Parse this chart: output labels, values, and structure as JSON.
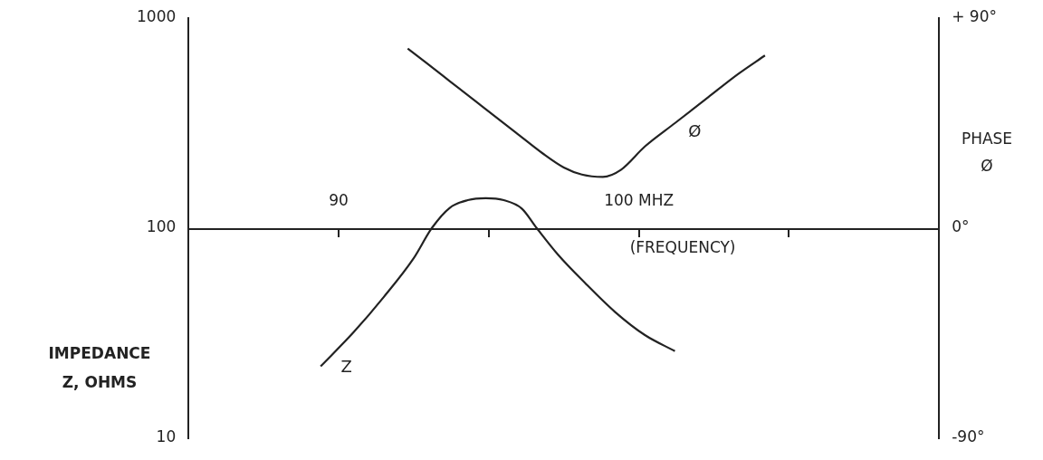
{
  "chart_data": {
    "type": "line",
    "xlabel": "(FREQUENCY)",
    "ylabel": "IMPEDANCE Z, OHMS",
    "y2label": "PHASE Ø",
    "xlim": [
      85,
      110
    ],
    "xticks": [
      {
        "value": 90,
        "label": "90"
      },
      {
        "value": 95,
        "label": null
      },
      {
        "value": 100,
        "label": "100 MHZ"
      },
      {
        "value": 105,
        "label": null
      }
    ],
    "log": "y",
    "ylim": [
      10,
      1000
    ],
    "yticks": [
      10,
      100,
      1000
    ],
    "y2lim": [
      -90,
      90
    ],
    "y2ticks": [
      {
        "value": -90,
        "label": "-90°"
      },
      {
        "value": 0,
        "label": "0°"
      },
      {
        "value": 90,
        "label": "+ 90°"
      }
    ],
    "grid": false,
    "legend": false,
    "marker": "none",
    "line_style": "solid",
    "series": [
      {
        "name": "Z",
        "color": "#222222",
        "x": [
          89.4,
          90.5,
          91.5,
          92.5,
          93.1,
          93.7,
          94.3,
          94.9,
          95.5,
          96.1,
          96.6,
          97.3,
          98.2,
          99.2,
          100.2,
          101.2
        ],
        "values": [
          22,
          32,
          47,
          72,
          100,
          125,
          136,
          139,
          136,
          124,
          100,
          75,
          55,
          40,
          31,
          26
        ]
      },
      {
        "name": "Ø",
        "color": "#222222",
        "axis": "y2",
        "x": [
          92.3,
          93.5,
          94.7,
          95.9,
          96.8,
          97.5,
          98.1,
          98.8,
          99.4,
          100.2,
          101.2,
          102.3,
          103.3,
          104.2
        ],
        "values": [
          77,
          65,
          53,
          41,
          32,
          26,
          23,
          22,
          25,
          35,
          45,
          56,
          66,
          74
        ]
      }
    ]
  }
}
